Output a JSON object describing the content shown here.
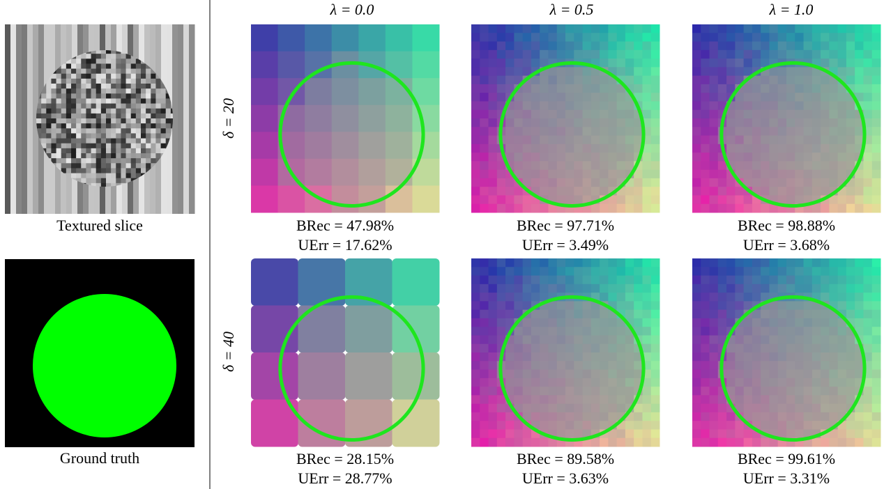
{
  "inputs": [
    {
      "caption": "Textured slice"
    },
    {
      "caption": "Ground truth"
    }
  ],
  "columns": [
    "λ = 0.0",
    "λ = 0.5",
    "λ = 1.0"
  ],
  "rows": [
    {
      "label": "δ = 20",
      "panels": [
        {
          "brec": "BRec = 47.98%",
          "uerr": "UErr = 17.62%"
        },
        {
          "brec": "BRec = 97.71%",
          "uerr": "UErr = 3.49%"
        },
        {
          "brec": "BRec = 98.88%",
          "uerr": "UErr = 3.68%"
        }
      ]
    },
    {
      "label": "δ = 40",
      "panels": [
        {
          "brec": "BRec = 28.15%",
          "uerr": "UErr = 28.77%"
        },
        {
          "brec": "BRec = 89.58%",
          "uerr": "UErr = 3.63%"
        },
        {
          "brec": "BRec = 99.61%",
          "uerr": "UErr = 3.31%"
        }
      ]
    }
  ]
}
